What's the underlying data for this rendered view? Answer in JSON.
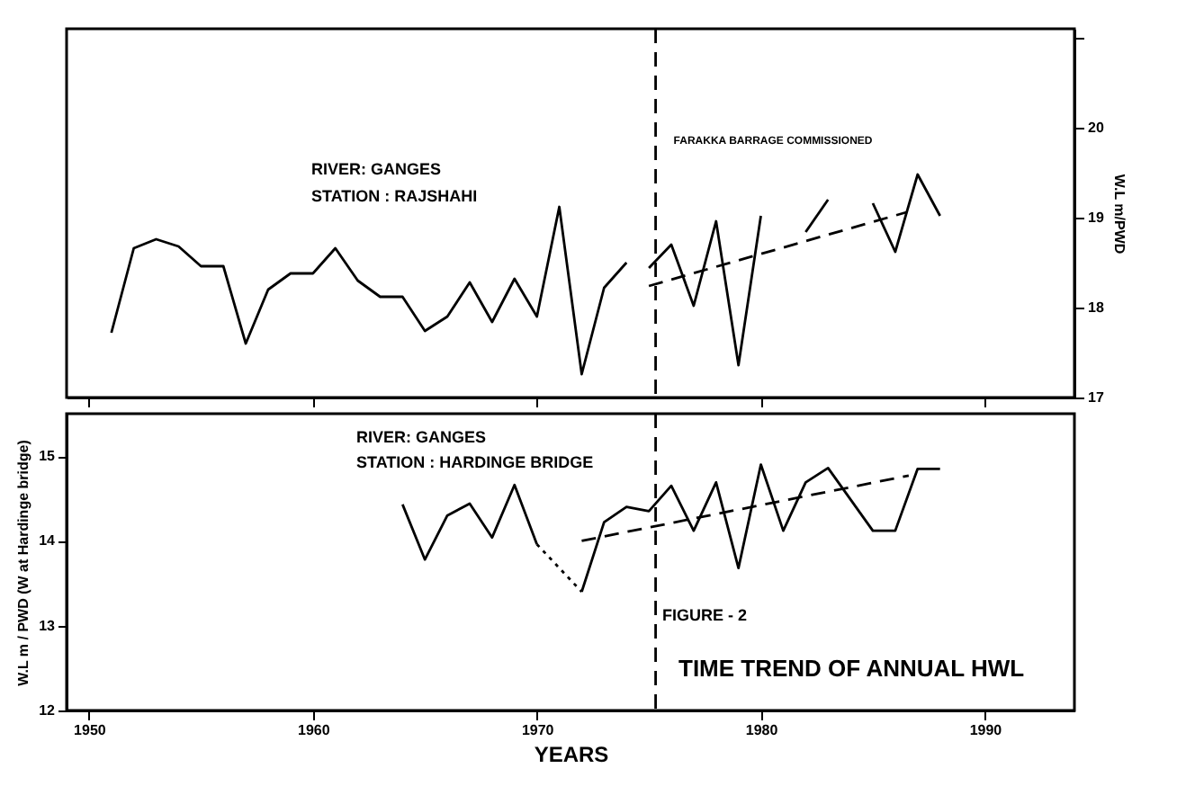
{
  "chart_data": [
    {
      "type": "line",
      "y2label": "W.L m/PWD",
      "xlim": [
        1949,
        1994
      ],
      "xticks": [
        1950,
        1960,
        1970,
        1980,
        1990
      ],
      "ylim": [
        17,
        21.1
      ],
      "yticks": [
        17,
        18,
        19,
        20,
        {
          "value": 21,
          "label": null
        }
      ],
      "tick_labels": "y",
      "grid": false,
      "marker": "none",
      "series": [
        {
          "color": "#000000",
          "line_style": "solid",
          "x": [
            1951,
            1952,
            1953,
            1954,
            1955,
            1956,
            1957,
            1958,
            1959,
            1960,
            1961,
            1962,
            1963,
            1964,
            1965,
            1966,
            1967,
            1968,
            1969,
            1970,
            1971,
            1972,
            1973,
            1974
          ],
          "values": [
            17.72,
            18.66,
            18.76,
            18.68,
            18.46,
            18.46,
            17.6,
            18.2,
            18.38,
            18.38,
            18.66,
            18.3,
            18.12,
            18.12,
            17.74,
            17.9,
            18.28,
            17.84,
            18.32,
            17.9,
            19.12,
            17.26,
            18.22,
            18.5
          ]
        },
        {
          "color": "#000000",
          "line_style": "solid",
          "x": [
            1975,
            1976,
            1977,
            1978,
            1979,
            1980
          ],
          "values": [
            18.44,
            18.7,
            18.02,
            18.96,
            17.36,
            19.02
          ]
        },
        {
          "color": "#000000",
          "line_style": "solid",
          "x": [
            1982,
            1983
          ],
          "values": [
            18.84,
            19.2
          ]
        },
        {
          "color": "#000000",
          "line_style": "solid",
          "x": [
            1985,
            1986,
            1987,
            1988
          ],
          "values": [
            19.16,
            18.62,
            19.48,
            19.02
          ]
        },
        {
          "color": "#000000",
          "line_style": "dashed",
          "x": [
            1975,
            1986.5
          ],
          "values": [
            18.24,
            19.06
          ]
        }
      ],
      "ref_lines": [
        {
          "axis": "x",
          "value": 1975.3,
          "label": "FARAKKA BARRAGE COMMISSIONED",
          "line_style": "dashed"
        }
      ],
      "annotations": [
        "RIVER: GANGES",
        "STATION : RAJSHAHI"
      ]
    },
    {
      "type": "line",
      "xlabel": "YEARS",
      "ylabel": "W.L m / PWD (W at Hardinge bridge)",
      "xlim": [
        1949,
        1994
      ],
      "xticks": [
        1950,
        1960,
        1970,
        1980,
        1990
      ],
      "ylim": [
        12,
        15.5
      ],
      "yticks": [
        12,
        13,
        14,
        15
      ],
      "grid": false,
      "marker": "none",
      "series": [
        {
          "color": "#000000",
          "line_style": "solid",
          "x": [
            1964,
            1965,
            1966,
            1967,
            1968,
            1969,
            1970
          ],
          "values": [
            14.43,
            13.78,
            14.3,
            14.44,
            14.04,
            14.66,
            13.96
          ]
        },
        {
          "color": "#000000",
          "line_style": "dotted",
          "x": [
            1970,
            1972
          ],
          "values": [
            13.96,
            13.4
          ]
        },
        {
          "color": "#000000",
          "line_style": "solid",
          "x": [
            1972,
            1973,
            1974,
            1975,
            1976,
            1977,
            1978,
            1979,
            1980,
            1981,
            1982,
            1983,
            1985,
            1986,
            1987,
            1988
          ],
          "values": [
            13.4,
            14.22,
            14.4,
            14.35,
            14.65,
            14.12,
            14.69,
            13.68,
            14.9,
            14.12,
            14.69,
            14.86,
            14.12,
            14.12,
            14.85,
            14.85
          ]
        },
        {
          "color": "#000000",
          "line_style": "dashed",
          "x": [
            1972,
            1986.6
          ],
          "values": [
            14.0,
            14.77
          ]
        }
      ],
      "ref_lines": [
        {
          "axis": "x",
          "value": 1975.3,
          "line_style": "dashed"
        }
      ],
      "annotations": [
        "RIVER: GANGES",
        "STATION : HARDINGE BRIDGE",
        "FIGURE - 2",
        "TIME TREND OF ANNUAL HWL"
      ]
    }
  ]
}
